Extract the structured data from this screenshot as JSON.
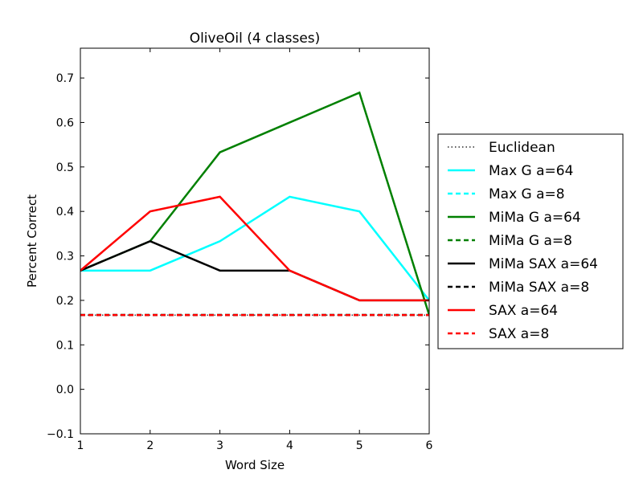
{
  "chart_data": {
    "type": "line",
    "title": "OliveOil (4 classes)",
    "xlabel": "Word Size",
    "ylabel": "Percent Correct",
    "xlim": [
      1,
      6
    ],
    "ylim": [
      -0.1,
      0.767
    ],
    "x_ticks": [
      "1",
      "2",
      "3",
      "4",
      "5",
      "6"
    ],
    "y_ticks": [
      "−0.1",
      "0.0",
      "0.1",
      "0.2",
      "0.3",
      "0.4",
      "0.5",
      "0.6",
      "0.7"
    ],
    "x": [
      1,
      2,
      3,
      4,
      5,
      6
    ],
    "grid": false,
    "legend_position": "right",
    "series": [
      {
        "name": "Euclidean",
        "color": "#000000",
        "style": "dotted",
        "values": [
          0.167,
          0.167,
          0.167,
          0.167,
          0.167,
          0.167
        ]
      },
      {
        "name": "Max G a=64",
        "color": "#00ffff",
        "style": "solid",
        "values": [
          0.267,
          0.267,
          0.333,
          0.433,
          0.4,
          0.2
        ]
      },
      {
        "name": "Max G a=8",
        "color": "#00ffff",
        "style": "dashed",
        "values": [
          0.167,
          0.167,
          0.167,
          0.167,
          0.167,
          0.167
        ]
      },
      {
        "name": "MiMa G a=64",
        "color": "#008000",
        "style": "solid",
        "values": [
          0.267,
          0.333,
          0.533,
          0.6,
          0.667,
          0.167
        ]
      },
      {
        "name": "MiMa G a=8",
        "color": "#008000",
        "style": "dashed",
        "values": [
          0.167,
          0.167,
          0.167,
          0.167,
          0.167,
          0.167
        ]
      },
      {
        "name": "MiMa SAX a=64",
        "color": "#000000",
        "style": "solid",
        "values": [
          0.267,
          0.333,
          0.267,
          0.267,
          0.2,
          0.2
        ]
      },
      {
        "name": "MiMa SAX a=8",
        "color": "#000000",
        "style": "dashed",
        "values": [
          0.167,
          0.167,
          0.167,
          0.167,
          0.167,
          0.167
        ]
      },
      {
        "name": "SAX a=64",
        "color": "#ff0000",
        "style": "solid",
        "values": [
          0.267,
          0.4,
          0.433,
          0.267,
          0.2,
          0.2
        ]
      },
      {
        "name": "SAX a=8",
        "color": "#ff0000",
        "style": "dashed",
        "values": [
          0.167,
          0.167,
          0.167,
          0.167,
          0.167,
          0.167
        ]
      }
    ]
  }
}
